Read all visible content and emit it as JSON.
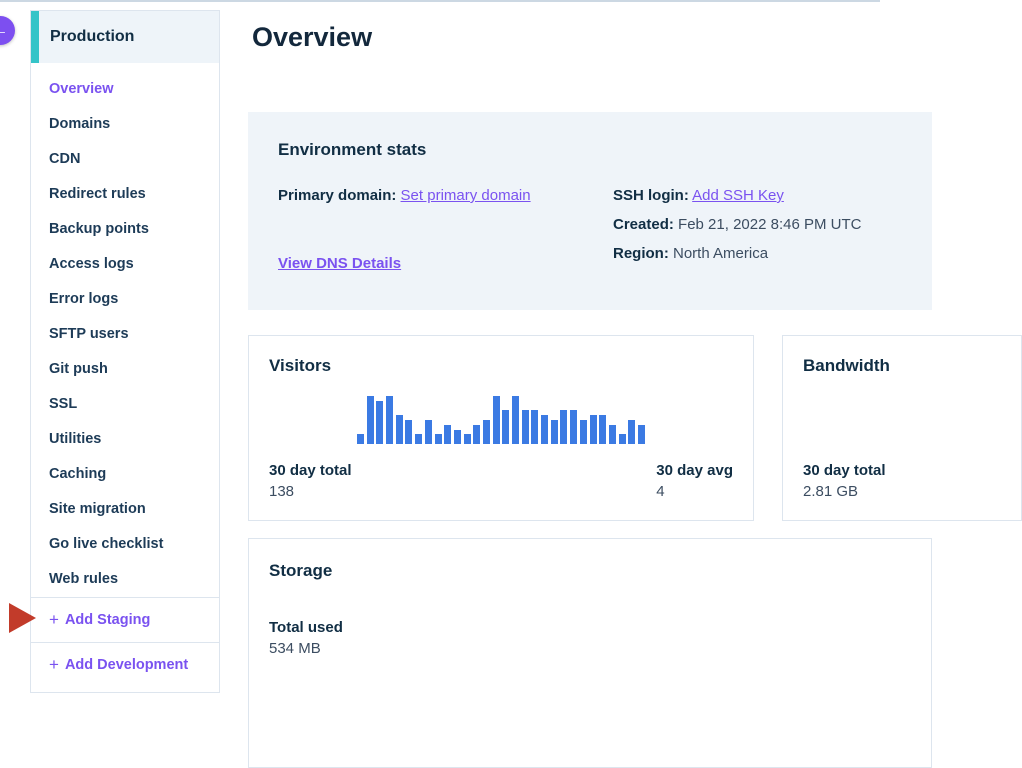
{
  "colors": {
    "accent_teal": "#35c4c8",
    "accent_purple": "#7a52f0",
    "heading_navy": "#112e44",
    "bar_blue": "#3b7ae3",
    "arrow_red": "#c23b2a",
    "env_card_bg": "#eff4f9"
  },
  "back_button": {
    "glyph": "←"
  },
  "sidebar": {
    "title": "Production",
    "items": [
      {
        "label": "Overview",
        "active": true
      },
      {
        "label": "Domains",
        "active": false
      },
      {
        "label": "CDN",
        "active": false
      },
      {
        "label": "Redirect rules",
        "active": false
      },
      {
        "label": "Backup points",
        "active": false
      },
      {
        "label": "Access logs",
        "active": false
      },
      {
        "label": "Error logs",
        "active": false
      },
      {
        "label": "SFTP users",
        "active": false
      },
      {
        "label": "Git push",
        "active": false
      },
      {
        "label": "SSL",
        "active": false
      },
      {
        "label": "Utilities",
        "active": false
      },
      {
        "label": "Caching",
        "active": false
      },
      {
        "label": "Site migration",
        "active": false
      },
      {
        "label": "Go live checklist",
        "active": false
      },
      {
        "label": "Web rules",
        "active": false
      }
    ],
    "actions": [
      {
        "label": "Add Staging",
        "glyph": "+"
      },
      {
        "label": "Add Development",
        "glyph": "+"
      }
    ]
  },
  "annotation": {
    "type": "red-arrow",
    "points_at": "Add Staging"
  },
  "main": {
    "title": "Overview",
    "environment_stats": {
      "title": "Environment stats",
      "primary_domain_label": "Primary domain:",
      "primary_domain_link": "Set primary domain",
      "dns_link": "View DNS Details",
      "ssh_label": "SSH login:",
      "ssh_link": "Add SSH Key",
      "created_label": "Created:",
      "created_value": "Feb 21, 2022 8:46 PM UTC",
      "region_label": "Region:",
      "region_value": "North America"
    },
    "visitors": {
      "title": "Visitors",
      "total_label": "30 day total",
      "total_value": "138",
      "avg_label": "30 day avg",
      "avg_value": "4"
    },
    "bandwidth": {
      "title": "Bandwidth",
      "total_label": "30 day total",
      "total_value": "2.81 GB"
    },
    "storage": {
      "title": "Storage",
      "used_label": "Total used",
      "used_value": "534 MB"
    }
  },
  "chart_data": {
    "type": "bar",
    "title": "Visitors",
    "xlabel": "",
    "ylabel": "",
    "axis_labels_shown": false,
    "grid": false,
    "legend": "none",
    "categories": [
      "d1",
      "d2",
      "d3",
      "d4",
      "d5",
      "d6",
      "d7",
      "d8",
      "d9",
      "d10",
      "d11",
      "d12",
      "d13",
      "d14",
      "d15",
      "d16",
      "d17",
      "d18",
      "d19",
      "d20",
      "d21",
      "d22",
      "d23",
      "d24",
      "d25",
      "d26",
      "d27",
      "d28",
      "d29",
      "d30"
    ],
    "values": [
      2,
      10,
      9,
      10,
      6,
      5,
      2,
      5,
      2,
      4,
      3,
      2,
      4,
      5,
      10,
      7,
      10,
      7,
      7,
      6,
      5,
      7,
      7,
      5,
      6,
      6,
      4,
      2,
      5,
      4
    ],
    "value_scale": "relative daily visitors (no axis shown)",
    "summary": {
      "total_30_day": 138,
      "avg_30_day": 4
    },
    "bar_color": "#3b7ae3"
  }
}
